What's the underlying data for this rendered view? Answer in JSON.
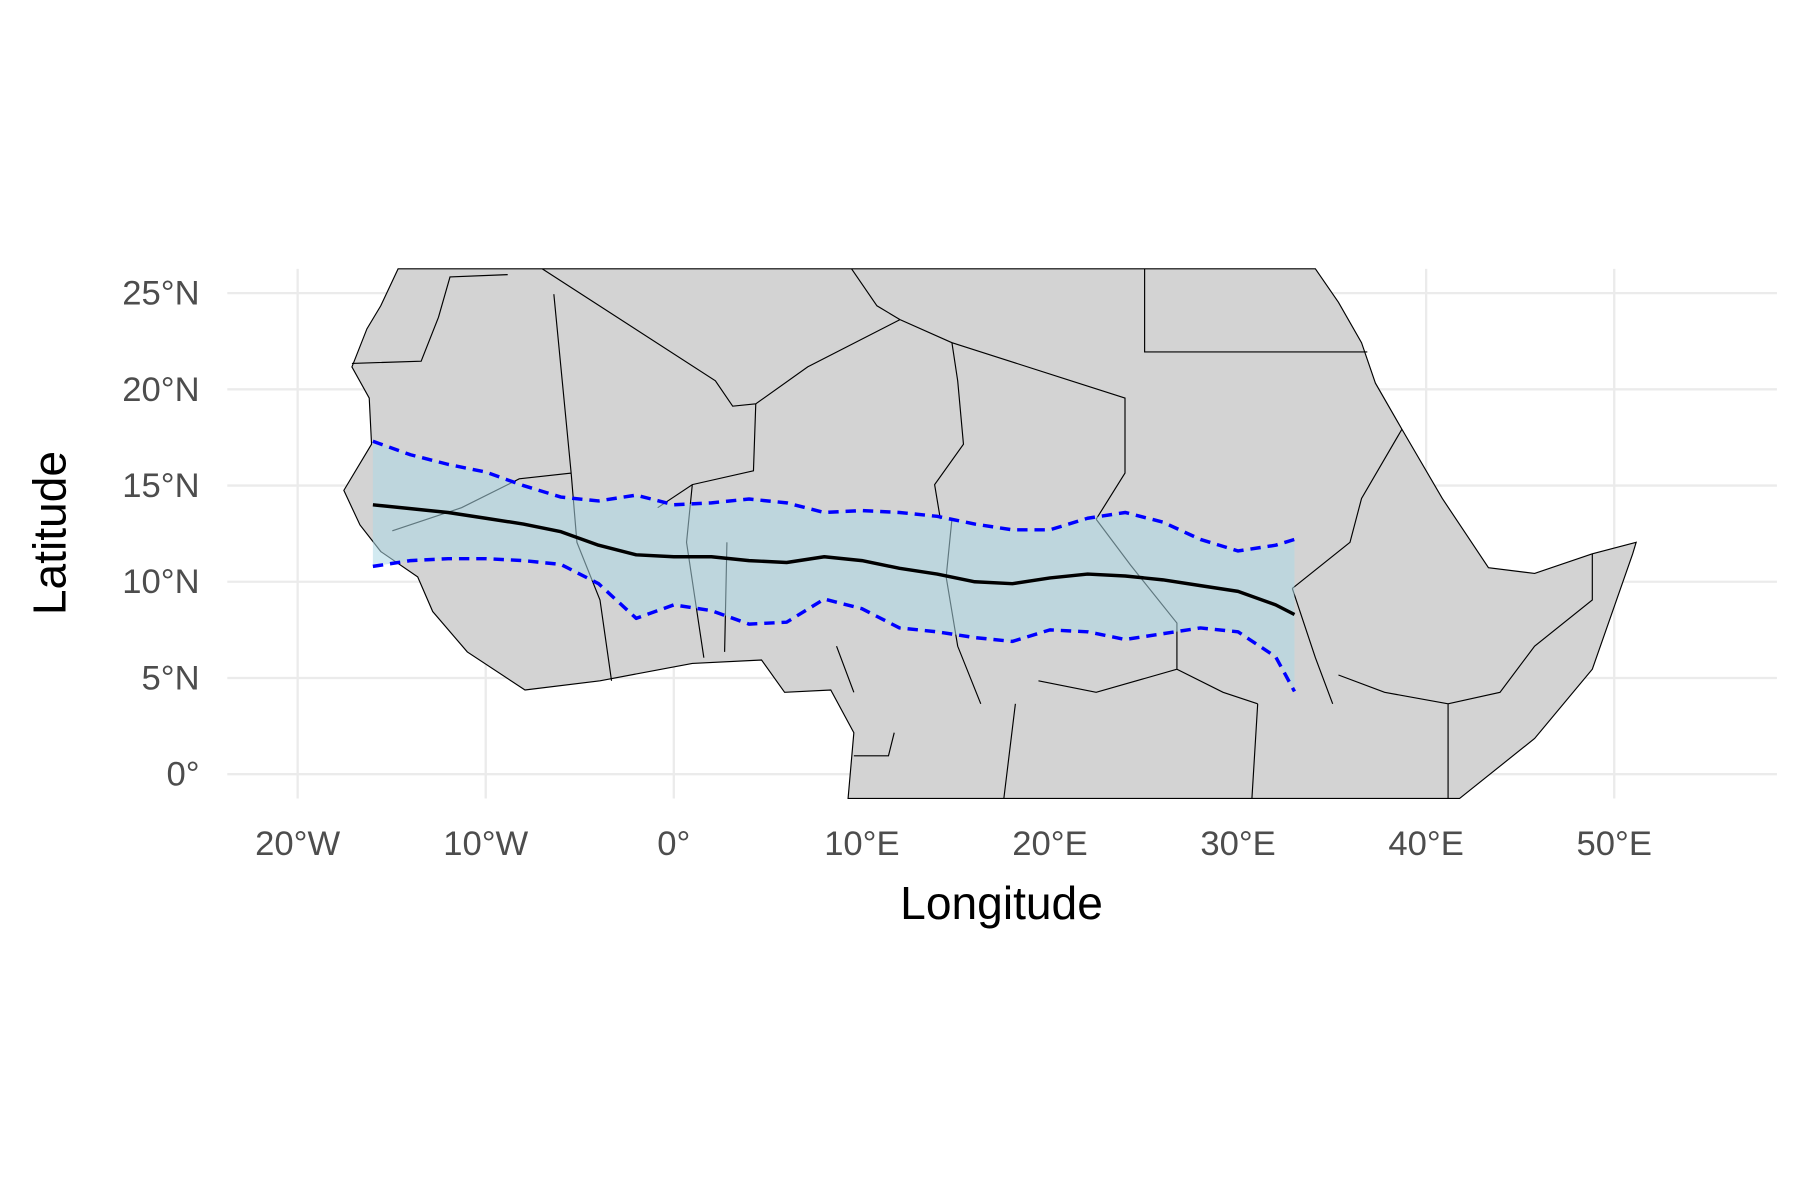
{
  "chart_data": {
    "type": "line",
    "x_label": "Longitude",
    "y_label": "Latitude",
    "x": [
      -16,
      -14,
      -12,
      -10,
      -8,
      -6,
      -4,
      -2,
      0,
      2,
      4,
      6,
      8,
      10,
      12,
      14,
      16,
      18,
      20,
      22,
      24,
      26,
      28,
      30,
      32,
      33
    ],
    "series": [
      {
        "color": "#000000",
        "dash": false,
        "values": [
          14.0,
          13.8,
          13.6,
          13.3,
          13.0,
          12.6,
          11.9,
          11.4,
          11.3,
          11.3,
          11.1,
          11.0,
          11.3,
          11.1,
          10.7,
          10.4,
          10.0,
          9.9,
          10.2,
          10.4,
          10.3,
          10.1,
          9.8,
          9.5,
          8.8,
          8.3
        ]
      },
      {
        "color": "#0000ff",
        "dash": true,
        "values": [
          17.3,
          16.6,
          16.1,
          15.7,
          15.0,
          14.4,
          14.2,
          14.5,
          14.0,
          14.1,
          14.3,
          14.1,
          13.6,
          13.7,
          13.6,
          13.4,
          13.0,
          12.7,
          12.7,
          13.3,
          13.6,
          13.1,
          12.2,
          11.6,
          11.9,
          12.2
        ]
      },
      {
        "color": "#0000ff",
        "dash": true,
        "values": [
          10.8,
          11.1,
          11.2,
          11.2,
          11.1,
          10.9,
          9.9,
          8.1,
          8.8,
          8.5,
          7.8,
          7.9,
          9.1,
          8.6,
          7.6,
          7.4,
          7.1,
          6.9,
          7.5,
          7.4,
          7.0,
          7.3,
          7.6,
          7.4,
          6.1,
          4.3
        ]
      }
    ],
    "ribbon": {
      "color": "#add8e6",
      "opacity": 0.55
    },
    "xlim": [
      -23.74,
      58.65
    ],
    "ylim": [
      -1.26,
      26.26
    ],
    "xticks": [
      {
        "value": -20,
        "label": "20°W"
      },
      {
        "value": -10,
        "label": "10°W"
      },
      {
        "value": 0,
        "label": "0°"
      },
      {
        "value": 10,
        "label": "10°E"
      },
      {
        "value": 20,
        "label": "20°E"
      },
      {
        "value": 30,
        "label": "30°E"
      },
      {
        "value": 40,
        "label": "40°E"
      },
      {
        "value": 50,
        "label": "50°E"
      }
    ],
    "yticks": [
      {
        "value": 0,
        "label": "0°"
      },
      {
        "value": 5,
        "label": "5°N"
      },
      {
        "value": 10,
        "label": "10°N"
      },
      {
        "value": 15,
        "label": "15°N"
      },
      {
        "value": 20,
        "label": "20°N"
      },
      {
        "value": 25,
        "label": "25°N"
      }
    ],
    "grid": true
  }
}
